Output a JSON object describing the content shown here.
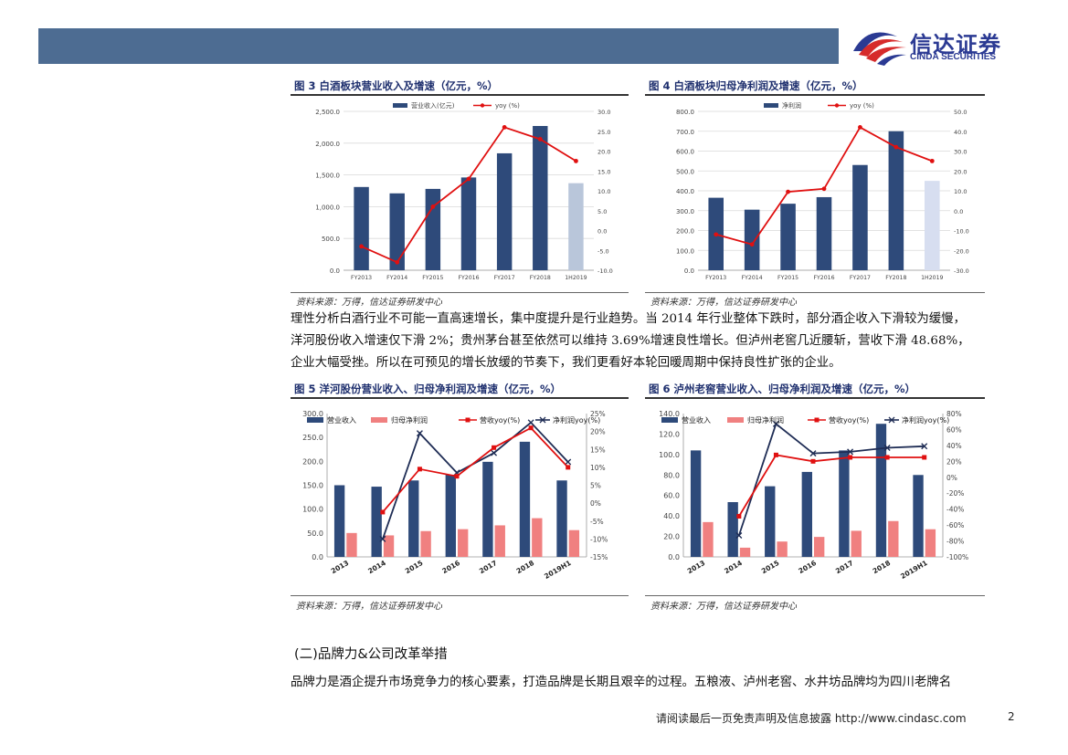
{
  "header": {
    "logo_cn": "信达证券",
    "logo_en": "CINDA SECURITIES"
  },
  "figures": [
    {
      "title": "图 3 白酒板块营业收入及增速（亿元，%）",
      "source": "资料来源：万得，信达证券研发中心"
    },
    {
      "title": "图 4 白酒板块归母净利润及增速（亿元，%）",
      "source": "资料来源：万得，信达证券研发中心"
    },
    {
      "title": "图 5 洋河股份营业收入、归母净利润及增速（亿元，%）",
      "source": "资料来源：万得，信达证券研发中心"
    },
    {
      "title": "图 6 泸州老窖营业收入、归母净利润及增速（亿元，%）",
      "source": "资料来源：万得，信达证券研发中心"
    }
  ],
  "paragraph": [
    "理性分析白酒行业不可能一直高速增长，集中度提升是行业趋势。当 2014 年行业整体下跌时，部分酒企收入下滑较为缓慢，",
    "洋河股份收入增速仅下滑 2%；贵州茅台甚至依然可以维持 3.69%增速良性增长。但泸州老窖几近腰斩，营收下滑 48.68%，",
    "企业大幅受挫。所以在可预见的增长放缓的节奏下，我们更看好本轮回暖周期中保持良性扩张的企业。"
  ],
  "section_title": "(二)品牌力&公司改革举措",
  "paragraph2": "品牌力是酒企提升市场竞争力的核心要素，打造品牌是长期且艰辛的过程。五粮液、泸州老窖、水井坊品牌均为四川老牌名",
  "footer": {
    "disclaimer": "请阅读最后一页免责声明及信息披露 http://www.cindasc.com",
    "page": "2"
  },
  "colors": {
    "bar": "#2e4a7a",
    "bar_light": "#b9c6da",
    "bar_light2": "#d7def0",
    "line": "#e01010",
    "pink": "#f08080",
    "xline": "#1f2d55"
  },
  "chart_data": [
    {
      "type": "bar",
      "categories": [
        "FY2013",
        "FY2014",
        "FY2015",
        "FY2016",
        "FY2017",
        "FY2018",
        "1H2019"
      ],
      "series": [
        {
          "name": "营业收入(亿元)",
          "values": [
            1310,
            1210,
            1280,
            1460,
            1840,
            2270,
            1370
          ]
        },
        {
          "name": "yoy (%)",
          "values": [
            -4,
            -8,
            6,
            13,
            26,
            23,
            17.5
          ]
        }
      ],
      "ylim": [
        0,
        2500
      ],
      "y2lim": [
        -10,
        30
      ],
      "yticks": [
        "0.0",
        "500.0",
        "1,000.0",
        "1,500.0",
        "2,000.0",
        "2,500.0"
      ],
      "y2ticks": [
        "-10.0",
        "-5.0",
        "0.0",
        "5.0",
        "10.0",
        "15.0",
        "20.0",
        "25.0",
        "30.0"
      ]
    },
    {
      "type": "bar",
      "categories": [
        "FY2013",
        "FY2014",
        "FY2015",
        "FY2016",
        "FY2017",
        "FY2018",
        "1H2019"
      ],
      "series": [
        {
          "name": "净利润",
          "values": [
            365,
            305,
            335,
            368,
            530,
            700,
            450
          ]
        },
        {
          "name": "yoy (%)",
          "values": [
            -12,
            -17,
            9.5,
            11,
            42,
            32,
            25
          ]
        }
      ],
      "ylim": [
        0,
        800
      ],
      "y2lim": [
        -30,
        50
      ],
      "yticks": [
        "0.0",
        "100.0",
        "200.0",
        "300.0",
        "400.0",
        "500.0",
        "600.0",
        "700.0",
        "800.0"
      ],
      "y2ticks": [
        "-30.0",
        "-20.0",
        "-10.0",
        "0.0",
        "10.0",
        "20.0",
        "30.0",
        "40.0",
        "50.0"
      ]
    },
    {
      "type": "bar",
      "categories": [
        "2013",
        "2014",
        "2015",
        "2016",
        "2017",
        "2018",
        "2019H1"
      ],
      "series": [
        {
          "name": "营业收入",
          "values": [
            150,
            147,
            160,
            172,
            199,
            241,
            160
          ]
        },
        {
          "name": "归母净利润",
          "values": [
            50,
            45,
            54,
            58,
            66,
            81,
            56
          ]
        },
        {
          "name": "营收yoy(%)",
          "values": [
            null,
            -2.5,
            9.5,
            7.5,
            15.5,
            21,
            10
          ]
        },
        {
          "name": "净利润yoy(%)",
          "values": [
            null,
            -10,
            19.5,
            8.5,
            14,
            22.5,
            11.5
          ]
        }
      ],
      "ylim": [
        0,
        300
      ],
      "y2lim": [
        -15,
        25
      ],
      "yticks": [
        "0.0",
        "50.0",
        "100.0",
        "150.0",
        "200.0",
        "250.0",
        "300.0"
      ],
      "y2ticks": [
        "-15%",
        "-10%",
        "-5%",
        "0%",
        "5%",
        "10%",
        "15%",
        "20%",
        "25%"
      ]
    },
    {
      "type": "bar",
      "categories": [
        "2013",
        "2014",
        "2015",
        "2016",
        "2017",
        "2018",
        "2019H1"
      ],
      "series": [
        {
          "name": "营业收入",
          "values": [
            104,
            53.5,
            69,
            83,
            104,
            130,
            80
          ]
        },
        {
          "name": "归母净利润",
          "values": [
            34,
            9,
            15,
            19.5,
            25.5,
            35,
            27
          ]
        },
        {
          "name": "营收yoy(%)",
          "values": [
            null,
            -49,
            28,
            20,
            25,
            25,
            25
          ]
        },
        {
          "name": "净利润yoy(%)",
          "values": [
            null,
            -73,
            67,
            30,
            32,
            37,
            39
          ]
        }
      ],
      "ylim": [
        0,
        140
      ],
      "y2lim": [
        -100,
        80
      ],
      "yticks": [
        "0.0",
        "20.0",
        "40.0",
        "60.0",
        "80.0",
        "100.0",
        "120.0",
        "140.0"
      ],
      "y2ticks": [
        "-100%",
        "-80%",
        "-60%",
        "-40%",
        "-20%",
        "0%",
        "20%",
        "40%",
        "60%",
        "80%"
      ]
    }
  ]
}
